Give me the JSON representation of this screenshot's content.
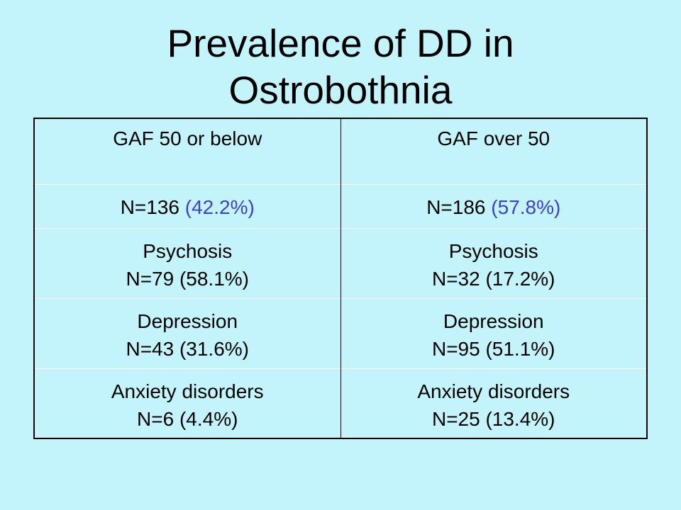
{
  "title": {
    "line1": "Prevalence of DD in",
    "line2": "Ostrobothnia"
  },
  "colors": {
    "background": "#c4f4fb",
    "accent_percent": "#3f3fc8",
    "text": "#000000"
  },
  "table": {
    "headers": [
      "GAF 50 or below",
      "GAF over 50"
    ],
    "totals": [
      {
        "count": "N=136",
        "percent": "(42.2%)"
      },
      {
        "count": "N=186",
        "percent": "(57.8%)"
      }
    ],
    "rows": [
      {
        "cells": [
          {
            "name": "Psychosis",
            "value": "N=79 (58.1%)"
          },
          {
            "name": "Psychosis",
            "value": "N=32 (17.2%)"
          }
        ]
      },
      {
        "cells": [
          {
            "name": "Depression",
            "value": "N=43 (31.6%)"
          },
          {
            "name": "Depression",
            "value": "N=95 (51.1%)"
          }
        ]
      },
      {
        "cells": [
          {
            "name": "Anxiety disorders",
            "value": "N=6 (4.4%)"
          },
          {
            "name": "Anxiety disorders",
            "value": "N=25 (13.4%)"
          }
        ]
      }
    ]
  }
}
